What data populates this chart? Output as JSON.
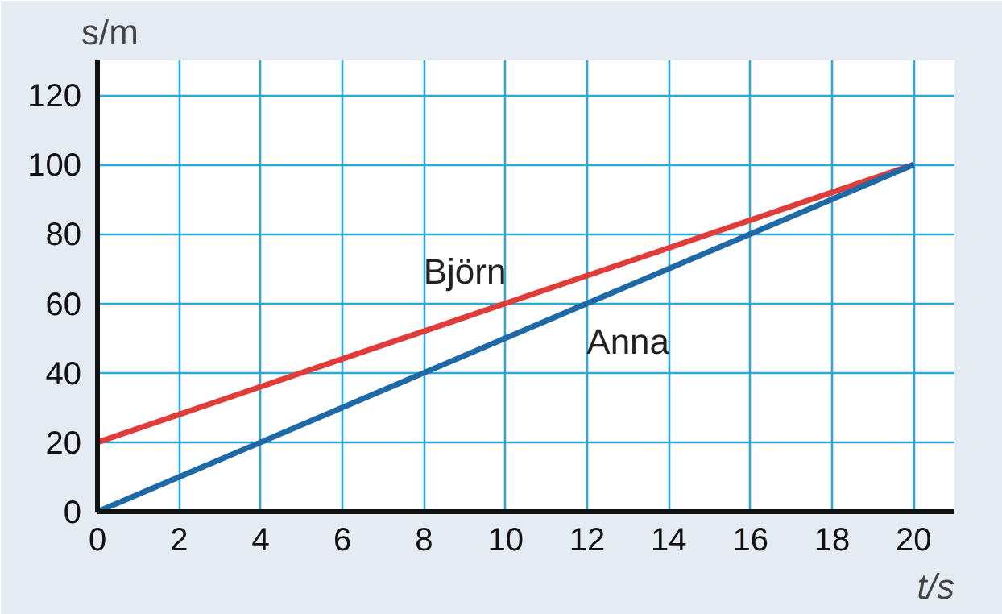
{
  "chart_data": {
    "type": "line",
    "xlabel": "t/s",
    "ylabel": "s/m",
    "x": [
      0,
      20
    ],
    "series": [
      {
        "name": "Björn",
        "color": "#e03c3a",
        "values": [
          20,
          100
        ]
      },
      {
        "name": "Anna",
        "color": "#1f69a6",
        "values": [
          0,
          100
        ]
      }
    ],
    "xlim": [
      0,
      21
    ],
    "ylim": [
      0,
      130
    ],
    "xticks": [
      0,
      2,
      4,
      6,
      8,
      10,
      12,
      14,
      16,
      18,
      20
    ],
    "yticks": [
      0,
      20,
      40,
      60,
      80,
      100,
      120
    ],
    "grid": true,
    "marker": "none",
    "line_style": "solid"
  }
}
